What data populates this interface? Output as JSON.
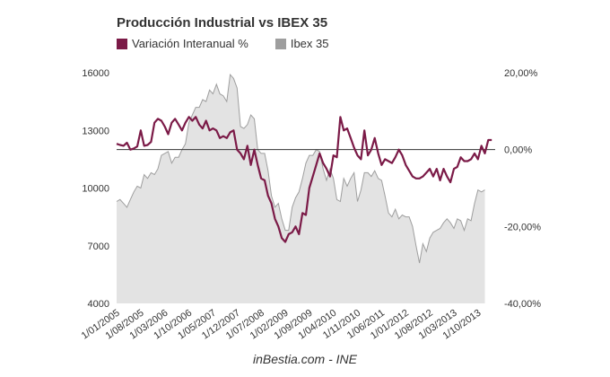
{
  "chart_data": {
    "type": "area+line",
    "title": "Producción Industrial vs IBEX 35",
    "source": "inBestia.com - INE",
    "series": [
      {
        "name": "Variación Interanual %",
        "axis": "right",
        "style": "line",
        "color": "#7b1a47",
        "points": [
          [
            "2005-01",
            1.5
          ],
          [
            "2005-02",
            1.2
          ],
          [
            "2005-03",
            1.0
          ],
          [
            "2005-04",
            1.8
          ],
          [
            "2005-05",
            0.0
          ],
          [
            "2005-06",
            0.3
          ],
          [
            "2005-07",
            0.8
          ],
          [
            "2005-08",
            5.0
          ],
          [
            "2005-09",
            1.0
          ],
          [
            "2005-10",
            1.2
          ],
          [
            "2005-11",
            2.0
          ],
          [
            "2005-12",
            7.0
          ],
          [
            "2006-01",
            8.0
          ],
          [
            "2006-02",
            7.5
          ],
          [
            "2006-03",
            6.0
          ],
          [
            "2006-04",
            4.0
          ],
          [
            "2006-05",
            7.0
          ],
          [
            "2006-06",
            8.0
          ],
          [
            "2006-07",
            6.5
          ],
          [
            "2006-08",
            5.0
          ],
          [
            "2006-09",
            7.0
          ],
          [
            "2006-10",
            8.5
          ],
          [
            "2006-11",
            7.5
          ],
          [
            "2006-12",
            8.5
          ],
          [
            "2007-01",
            6.5
          ],
          [
            "2007-02",
            5.5
          ],
          [
            "2007-03",
            7.5
          ],
          [
            "2007-04",
            5.0
          ],
          [
            "2007-05",
            5.5
          ],
          [
            "2007-06",
            5.0
          ],
          [
            "2007-07",
            3.0
          ],
          [
            "2007-08",
            3.5
          ],
          [
            "2007-09",
            3.0
          ],
          [
            "2007-10",
            4.5
          ],
          [
            "2007-11",
            5.0
          ],
          [
            "2007-12",
            0.0
          ],
          [
            "2008-01",
            -1.0
          ],
          [
            "2008-02",
            -2.5
          ],
          [
            "2008-03",
            1.0
          ],
          [
            "2008-04",
            -4.0
          ],
          [
            "2008-05",
            0.0
          ],
          [
            "2008-06",
            -4.0
          ],
          [
            "2008-07",
            -7.5
          ],
          [
            "2008-08",
            -8.0
          ],
          [
            "2008-09",
            -12.0
          ],
          [
            "2008-10",
            -14.0
          ],
          [
            "2008-11",
            -18.0
          ],
          [
            "2008-12",
            -20.0
          ],
          [
            "2009-01",
            -23.0
          ],
          [
            "2009-02",
            -24.0
          ],
          [
            "2009-03",
            -22.0
          ],
          [
            "2009-04",
            -21.5
          ],
          [
            "2009-05",
            -20.0
          ],
          [
            "2009-06",
            -22.0
          ],
          [
            "2009-07",
            -16.5
          ],
          [
            "2009-08",
            -17.0
          ],
          [
            "2009-09",
            -10.0
          ],
          [
            "2009-10",
            -7.0
          ],
          [
            "2009-11",
            -4.0
          ],
          [
            "2009-12",
            -1.0
          ],
          [
            "2010-01",
            -3.5
          ],
          [
            "2010-02",
            -5.0
          ],
          [
            "2010-03",
            -7.0
          ],
          [
            "2010-04",
            -1.5
          ],
          [
            "2010-05",
            -2.0
          ],
          [
            "2010-06",
            8.5
          ],
          [
            "2010-07",
            5.0
          ],
          [
            "2010-08",
            5.5
          ],
          [
            "2010-09",
            3.0
          ],
          [
            "2010-10",
            0.5
          ],
          [
            "2010-11",
            -1.5
          ],
          [
            "2010-12",
            -2.5
          ],
          [
            "2011-01",
            5.0
          ],
          [
            "2011-02",
            -1.5
          ],
          [
            "2011-03",
            0.0
          ],
          [
            "2011-04",
            3.0
          ],
          [
            "2011-05",
            -1.0
          ],
          [
            "2011-06",
            -4.0
          ],
          [
            "2011-07",
            -2.5
          ],
          [
            "2011-08",
            -3.0
          ],
          [
            "2011-09",
            -3.5
          ],
          [
            "2011-10",
            -2.0
          ],
          [
            "2011-11",
            0.0
          ],
          [
            "2011-12",
            -1.5
          ],
          [
            "2012-01",
            -4.0
          ],
          [
            "2012-02",
            -5.5
          ],
          [
            "2012-03",
            -7.0
          ],
          [
            "2012-04",
            -7.5
          ],
          [
            "2012-05",
            -7.5
          ],
          [
            "2012-06",
            -7.0
          ],
          [
            "2012-07",
            -6.0
          ],
          [
            "2012-08",
            -5.0
          ],
          [
            "2012-09",
            -7.0
          ],
          [
            "2012-10",
            -5.0
          ],
          [
            "2012-11",
            -8.0
          ],
          [
            "2012-12",
            -5.0
          ],
          [
            "2013-01",
            -7.0
          ],
          [
            "2013-02",
            -8.5
          ],
          [
            "2013-03",
            -5.0
          ],
          [
            "2013-04",
            -4.5
          ],
          [
            "2013-05",
            -2.0
          ],
          [
            "2013-06",
            -3.0
          ],
          [
            "2013-07",
            -3.0
          ],
          [
            "2013-08",
            -2.5
          ],
          [
            "2013-09",
            -1.0
          ],
          [
            "2013-10",
            -2.5
          ],
          [
            "2013-11",
            1.0
          ],
          [
            "2013-12",
            -1.0
          ],
          [
            "2014-01",
            2.5
          ],
          [
            "2014-02",
            2.5
          ]
        ]
      },
      {
        "name": "Ibex 35",
        "axis": "left",
        "style": "area",
        "color": "#9e9e9e",
        "fill": "#e3e3e3",
        "points": [
          [
            "2005-01",
            9300
          ],
          [
            "2005-02",
            9400
          ],
          [
            "2005-03",
            9200
          ],
          [
            "2005-04",
            9000
          ],
          [
            "2005-05",
            9400
          ],
          [
            "2005-06",
            9800
          ],
          [
            "2005-07",
            10100
          ],
          [
            "2005-08",
            10000
          ],
          [
            "2005-09",
            10700
          ],
          [
            "2005-10",
            10500
          ],
          [
            "2005-11",
            10800
          ],
          [
            "2005-12",
            10700
          ],
          [
            "2006-01",
            11000
          ],
          [
            "2006-02",
            11700
          ],
          [
            "2006-03",
            11800
          ],
          [
            "2006-04",
            11900
          ],
          [
            "2006-05",
            11300
          ],
          [
            "2006-06",
            11600
          ],
          [
            "2006-07",
            11600
          ],
          [
            "2006-08",
            12000
          ],
          [
            "2006-09",
            12300
          ],
          [
            "2006-10",
            13400
          ],
          [
            "2006-11",
            13800
          ],
          [
            "2006-12",
            14200
          ],
          [
            "2007-01",
            14200
          ],
          [
            "2007-02",
            14600
          ],
          [
            "2007-03",
            14500
          ],
          [
            "2007-04",
            15100
          ],
          [
            "2007-05",
            14900
          ],
          [
            "2007-06",
            15400
          ],
          [
            "2007-07",
            14900
          ],
          [
            "2007-08",
            14800
          ],
          [
            "2007-09",
            14500
          ],
          [
            "2007-10",
            15900
          ],
          [
            "2007-11",
            15700
          ],
          [
            "2007-12",
            15200
          ],
          [
            "2008-01",
            13200
          ],
          [
            "2008-02",
            13100
          ],
          [
            "2008-03",
            13300
          ],
          [
            "2008-04",
            13800
          ],
          [
            "2008-05",
            13600
          ],
          [
            "2008-06",
            12000
          ],
          [
            "2008-07",
            11800
          ],
          [
            "2008-08",
            11800
          ],
          [
            "2008-09",
            10900
          ],
          [
            "2008-10",
            9600
          ],
          [
            "2008-11",
            9000
          ],
          [
            "2008-12",
            9200
          ],
          [
            "2009-01",
            8400
          ],
          [
            "2009-02",
            7800
          ],
          [
            "2009-03",
            7800
          ],
          [
            "2009-04",
            9000
          ],
          [
            "2009-05",
            9500
          ],
          [
            "2009-06",
            9800
          ],
          [
            "2009-07",
            10500
          ],
          [
            "2009-08",
            11300
          ],
          [
            "2009-09",
            11700
          ],
          [
            "2009-10",
            11700
          ],
          [
            "2009-11",
            12000
          ],
          [
            "2009-12",
            11900
          ],
          [
            "2010-01",
            11000
          ],
          [
            "2010-02",
            10400
          ],
          [
            "2010-03",
            11000
          ],
          [
            "2010-04",
            10500
          ],
          [
            "2010-05",
            9400
          ],
          [
            "2010-06",
            9300
          ],
          [
            "2010-07",
            10500
          ],
          [
            "2010-08",
            10100
          ],
          [
            "2010-09",
            10500
          ],
          [
            "2010-10",
            10800
          ],
          [
            "2010-11",
            9300
          ],
          [
            "2010-12",
            9900
          ],
          [
            "2011-01",
            10800
          ],
          [
            "2011-02",
            10800
          ],
          [
            "2011-03",
            10600
          ],
          [
            "2011-04",
            10900
          ],
          [
            "2011-05",
            10500
          ],
          [
            "2011-06",
            10400
          ],
          [
            "2011-07",
            9600
          ],
          [
            "2011-08",
            8700
          ],
          [
            "2011-09",
            8500
          ],
          [
            "2011-10",
            8900
          ],
          [
            "2011-11",
            8400
          ],
          [
            "2011-12",
            8600
          ],
          [
            "2012-01",
            8500
          ],
          [
            "2012-02",
            8500
          ],
          [
            "2012-03",
            8000
          ],
          [
            "2012-04",
            7000
          ],
          [
            "2012-05",
            6100
          ],
          [
            "2012-06",
            7100
          ],
          [
            "2012-07",
            6700
          ],
          [
            "2012-08",
            7400
          ],
          [
            "2012-09",
            7700
          ],
          [
            "2012-10",
            7800
          ],
          [
            "2012-11",
            7900
          ],
          [
            "2012-12",
            8200
          ],
          [
            "2013-01",
            8400
          ],
          [
            "2013-02",
            8200
          ],
          [
            "2013-03",
            7900
          ],
          [
            "2013-04",
            8400
          ],
          [
            "2013-05",
            8300
          ],
          [
            "2013-06",
            7800
          ],
          [
            "2013-07",
            8400
          ],
          [
            "2013-08",
            8300
          ],
          [
            "2013-09",
            9200
          ],
          [
            "2013-10",
            9900
          ],
          [
            "2013-11",
            9800
          ],
          [
            "2013-12",
            9900
          ]
        ]
      }
    ],
    "x_ticks": [
      "1/01/2005",
      "1/08/2005",
      "1/03/2006",
      "1/10/2006",
      "1/05/2007",
      "1/12/2007",
      "1/07/2008",
      "1/02/2009",
      "1/09/2009",
      "1/04/2010",
      "1/11/2010",
      "1/06/2011",
      "1/01/2012",
      "1/08/2012",
      "1/03/2013",
      "1/10/2013"
    ],
    "x_tick_dates": [
      "2005-01",
      "2005-08",
      "2006-03",
      "2006-10",
      "2007-05",
      "2007-12",
      "2008-07",
      "2009-02",
      "2009-09",
      "2010-04",
      "2010-11",
      "2011-06",
      "2012-01",
      "2012-08",
      "2013-03",
      "2013-10"
    ],
    "y_left": {
      "ticks": [
        4000,
        7000,
        10000,
        13000,
        16000
      ],
      "labels": [
        "4000",
        "7000",
        "10000",
        "13000",
        "16000"
      ],
      "ylim": [
        4000,
        16000
      ]
    },
    "y_right": {
      "ticks": [
        -40,
        -20,
        0,
        20
      ],
      "labels": [
        "-40,00%",
        "-20,00%",
        "0,00%",
        "20,00%"
      ],
      "ylim": [
        -40,
        20
      ]
    },
    "zero_line": true,
    "legend_position": "top-left"
  }
}
